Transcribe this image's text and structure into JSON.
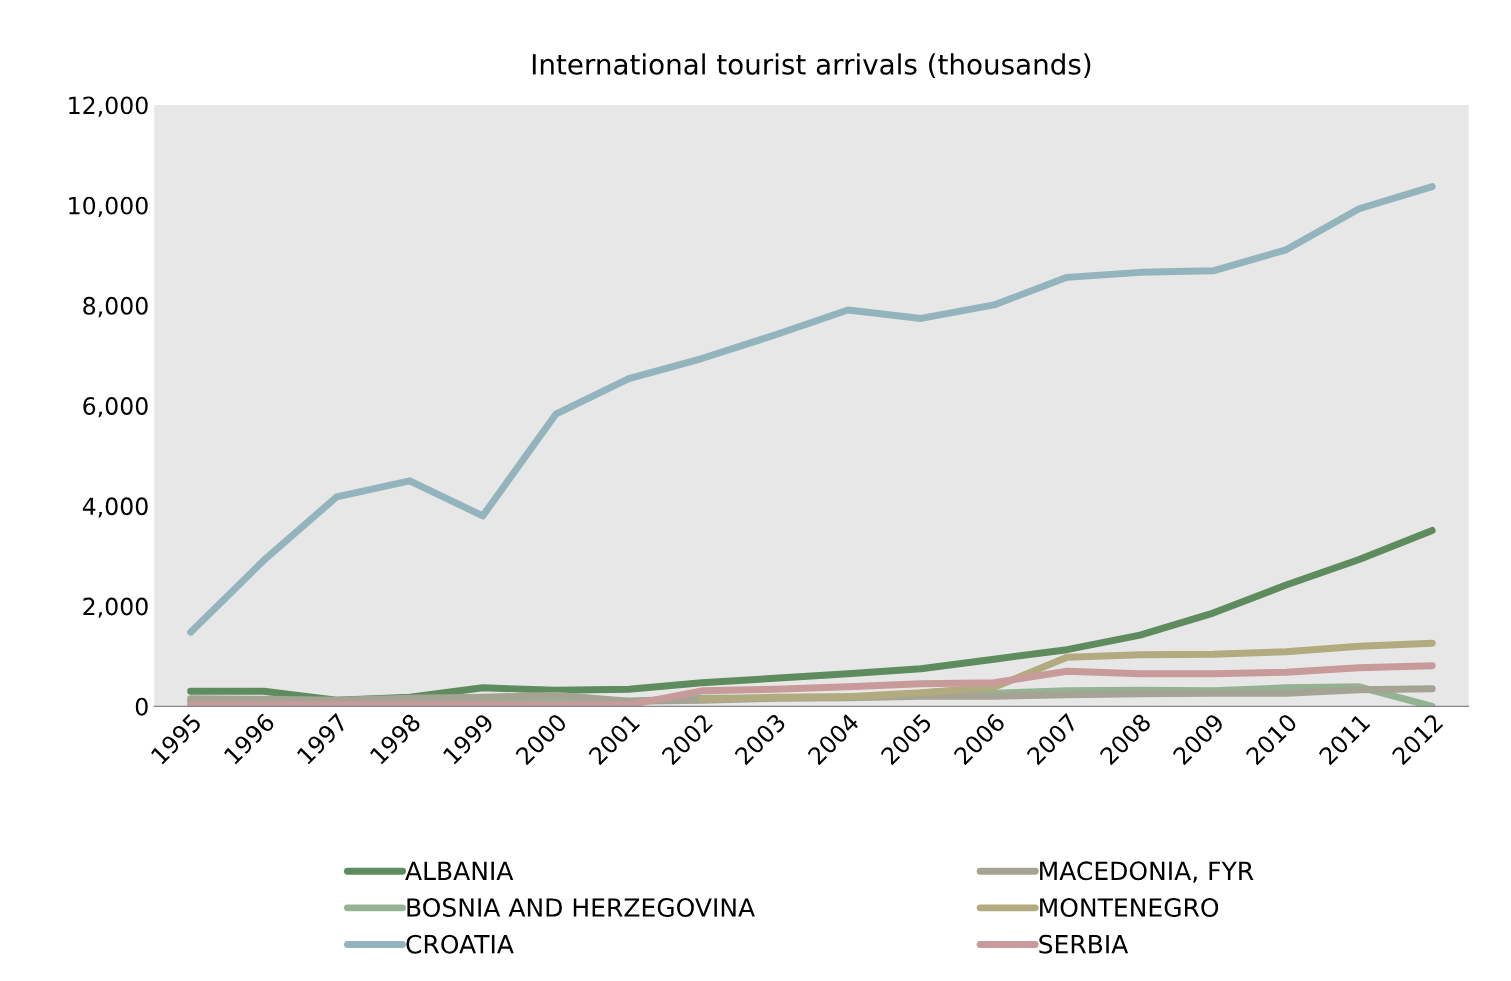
{
  "chart_data": {
    "type": "line",
    "title": "International tourist arrivals (thousands)",
    "categories": [
      "1995",
      "1996",
      "1997",
      "1998",
      "1999",
      "2000",
      "2001",
      "2002",
      "2003",
      "2004",
      "2005",
      "2006",
      "2007",
      "2008",
      "2009",
      "2010",
      "2011",
      "2012"
    ],
    "series": [
      {
        "name": "ALBANIA",
        "color": "#5e8c5e",
        "values": [
          300,
          300,
          120,
          180,
          370,
          320,
          340,
          470,
          560,
          650,
          750,
          940,
          1130,
          1420,
          1860,
          2420,
          2930,
          3510
        ]
      },
      {
        "name": "BOSNIA AND HERZEGOVINA",
        "color": "#93b393",
        "values": [
          100,
          100,
          100,
          100,
          100,
          100,
          100,
          160,
          170,
          190,
          220,
          260,
          310,
          320,
          310,
          370,
          390,
          0
        ]
      },
      {
        "name": "CROATIA",
        "color": "#93b4bd",
        "values": [
          1480,
          2910,
          4180,
          4500,
          3800,
          5830,
          6540,
          6940,
          7410,
          7910,
          7740,
          8010,
          8560,
          8660,
          8690,
          9110,
          9930,
          10370
        ]
      },
      {
        "name": "MACEDONIA, FYR",
        "color": "#a5a394",
        "values": [
          150,
          140,
          120,
          160,
          180,
          220,
          100,
          120,
          160,
          170,
          200,
          200,
          230,
          250,
          260,
          260,
          330,
          350
        ]
      },
      {
        "name": "MONTENEGRO",
        "color": "#b2ab7f",
        "values": [
          null,
          null,
          null,
          null,
          null,
          null,
          null,
          140,
          180,
          190,
          270,
          380,
          980,
          1030,
          1040,
          1090,
          1200,
          1260
        ]
      },
      {
        "name": "SERBIA",
        "color": "#c99a9a",
        "values": [
          30,
          30,
          30,
          30,
          30,
          30,
          30,
          310,
          340,
          390,
          450,
          470,
          700,
          650,
          650,
          680,
          770,
          810
        ]
      }
    ],
    "ylim": [
      0,
      12000
    ],
    "yticks": [
      {
        "value": 0,
        "label": "0"
      },
      {
        "value": 2000,
        "label": "2,000"
      },
      {
        "value": 4000,
        "label": "4,000"
      },
      {
        "value": 6000,
        "label": "6,000"
      },
      {
        "value": 8000,
        "label": "8,000"
      },
      {
        "value": 10000,
        "label": "10,000"
      },
      {
        "value": 12000,
        "label": "12,000"
      }
    ],
    "grid": false,
    "legend": "bottom",
    "marker": "none",
    "line_style": "solid"
  }
}
